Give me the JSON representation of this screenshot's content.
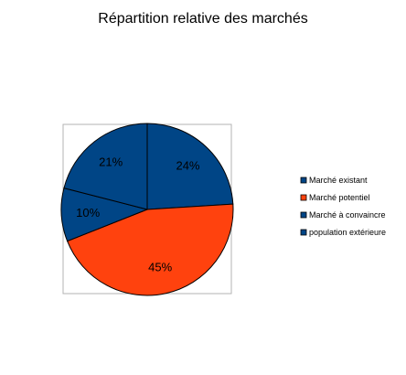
{
  "chart_data": {
    "type": "pie",
    "title": "Répartition relative des marchés",
    "slices": [
      {
        "name": "Marché existant",
        "value": 24,
        "label": "24%",
        "color": "#004586"
      },
      {
        "name": "Marché potentiel",
        "value": 45,
        "label": "45%",
        "color": "#ff420e"
      },
      {
        "name": "Marché à convaincre",
        "value": 10,
        "label": "10%",
        "color": "#004586"
      },
      {
        "name": "population extérieure",
        "value": 21,
        "label": "21%",
        "color": "#004586"
      }
    ],
    "legend_position": "right"
  }
}
